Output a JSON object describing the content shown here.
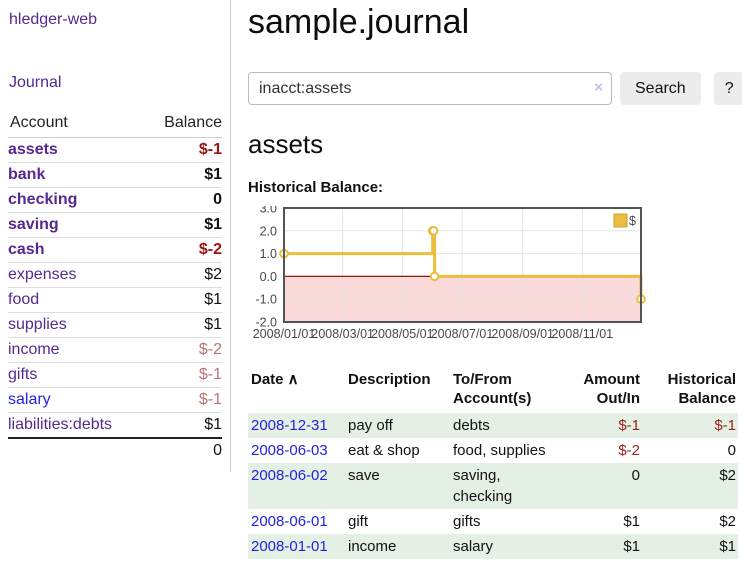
{
  "app": {
    "brand": "hledger-web",
    "nav_journal": "Journal"
  },
  "sidebar": {
    "header": {
      "account": "Account",
      "balance": "Balance"
    },
    "accounts": [
      {
        "name": "assets",
        "balance": "$-1",
        "indent": 1,
        "bold": true,
        "neg": "strong"
      },
      {
        "name": "bank",
        "balance": "$1",
        "indent": 2,
        "bold": true
      },
      {
        "name": "checking",
        "balance": "0",
        "indent": 3,
        "bold": true
      },
      {
        "name": "saving",
        "balance": "$1",
        "indent": 3,
        "bold": true
      },
      {
        "name": "cash",
        "balance": "$-2",
        "indent": 2,
        "bold": true,
        "neg": "strong"
      },
      {
        "name": "expenses",
        "balance": "$2",
        "indent": 1
      },
      {
        "name": "food",
        "balance": "$1",
        "indent": 2
      },
      {
        "name": "supplies",
        "balance": "$1",
        "indent": 2
      },
      {
        "name": "income",
        "balance": "$-2",
        "indent": 1,
        "neg": "soft"
      },
      {
        "name": "gifts",
        "balance": "$-1",
        "indent": 2,
        "neg": "soft"
      },
      {
        "name": "salary",
        "balance": "$-1",
        "indent": 2,
        "neg": "soft",
        "blue": true
      },
      {
        "name": "liabilities:debts",
        "balance": "$1",
        "indent": 1
      }
    ],
    "total": "0"
  },
  "header": {
    "title": "sample.journal"
  },
  "search": {
    "value": "inacct:assets",
    "clear_icon": "×",
    "button_label": "Search",
    "help_label": "?"
  },
  "account_page": {
    "title": "assets",
    "chart_label": "Historical Balance:"
  },
  "chart_data": {
    "type": "line",
    "style": "step",
    "title": "Historical Balance",
    "series": [
      {
        "name": "$",
        "points": [
          [
            "2008-01-01",
            1
          ],
          [
            "2008-06-01",
            2
          ],
          [
            "2008-06-02",
            2
          ],
          [
            "2008-06-03",
            0
          ],
          [
            "2008-12-31",
            -1
          ]
        ]
      }
    ],
    "x_range": [
      "2008-01-01",
      "2008-12-31"
    ],
    "x_ticks": [
      "2008/01/01",
      "2008/03/01",
      "2008/05/01",
      "2008/07/01",
      "2008/09/01",
      "2008/11/01"
    ],
    "y_ticks": [
      3.0,
      2.0,
      1.0,
      0.0,
      -1.0,
      -2.0
    ],
    "ylim": [
      -2,
      3
    ],
    "legend": {
      "label": "$",
      "position": "top-right"
    },
    "grid": true,
    "colors": {
      "line": "#e9bd3e",
      "marker_fill": "#ffffff",
      "negative_region": "#fbdada",
      "zero_line": "#8b1616",
      "grid": "#e3e3e3",
      "border": "#545454"
    }
  },
  "register": {
    "sort_indicator": "∧",
    "columns": [
      {
        "lines": [
          "Date"
        ],
        "align": "left",
        "sortable": true
      },
      {
        "lines": [
          "Description"
        ],
        "align": "left"
      },
      {
        "lines": [
          "To/From",
          "Account(s)"
        ],
        "align": "left"
      },
      {
        "lines": [
          "Amount",
          "Out/In"
        ],
        "align": "right"
      },
      {
        "lines": [
          "Historical",
          "Balance"
        ],
        "align": "right"
      }
    ],
    "rows": [
      {
        "date": "2008-12-31",
        "description": "pay off",
        "accounts": "debts",
        "amount": "$-1",
        "balance": "$-1"
      },
      {
        "date": "2008-06-03",
        "description": "eat & shop",
        "accounts": "food, supplies",
        "amount": "$-2",
        "balance": "0"
      },
      {
        "date": "2008-06-02",
        "description": "save",
        "accounts": "saving, checking",
        "amount": "0",
        "balance": "$2"
      },
      {
        "date": "2008-06-01",
        "description": "gift",
        "accounts": "gifts",
        "amount": "$1",
        "balance": "$2"
      },
      {
        "date": "2008-01-01",
        "description": "income",
        "accounts": "salary",
        "amount": "$1",
        "balance": "$1"
      }
    ]
  }
}
